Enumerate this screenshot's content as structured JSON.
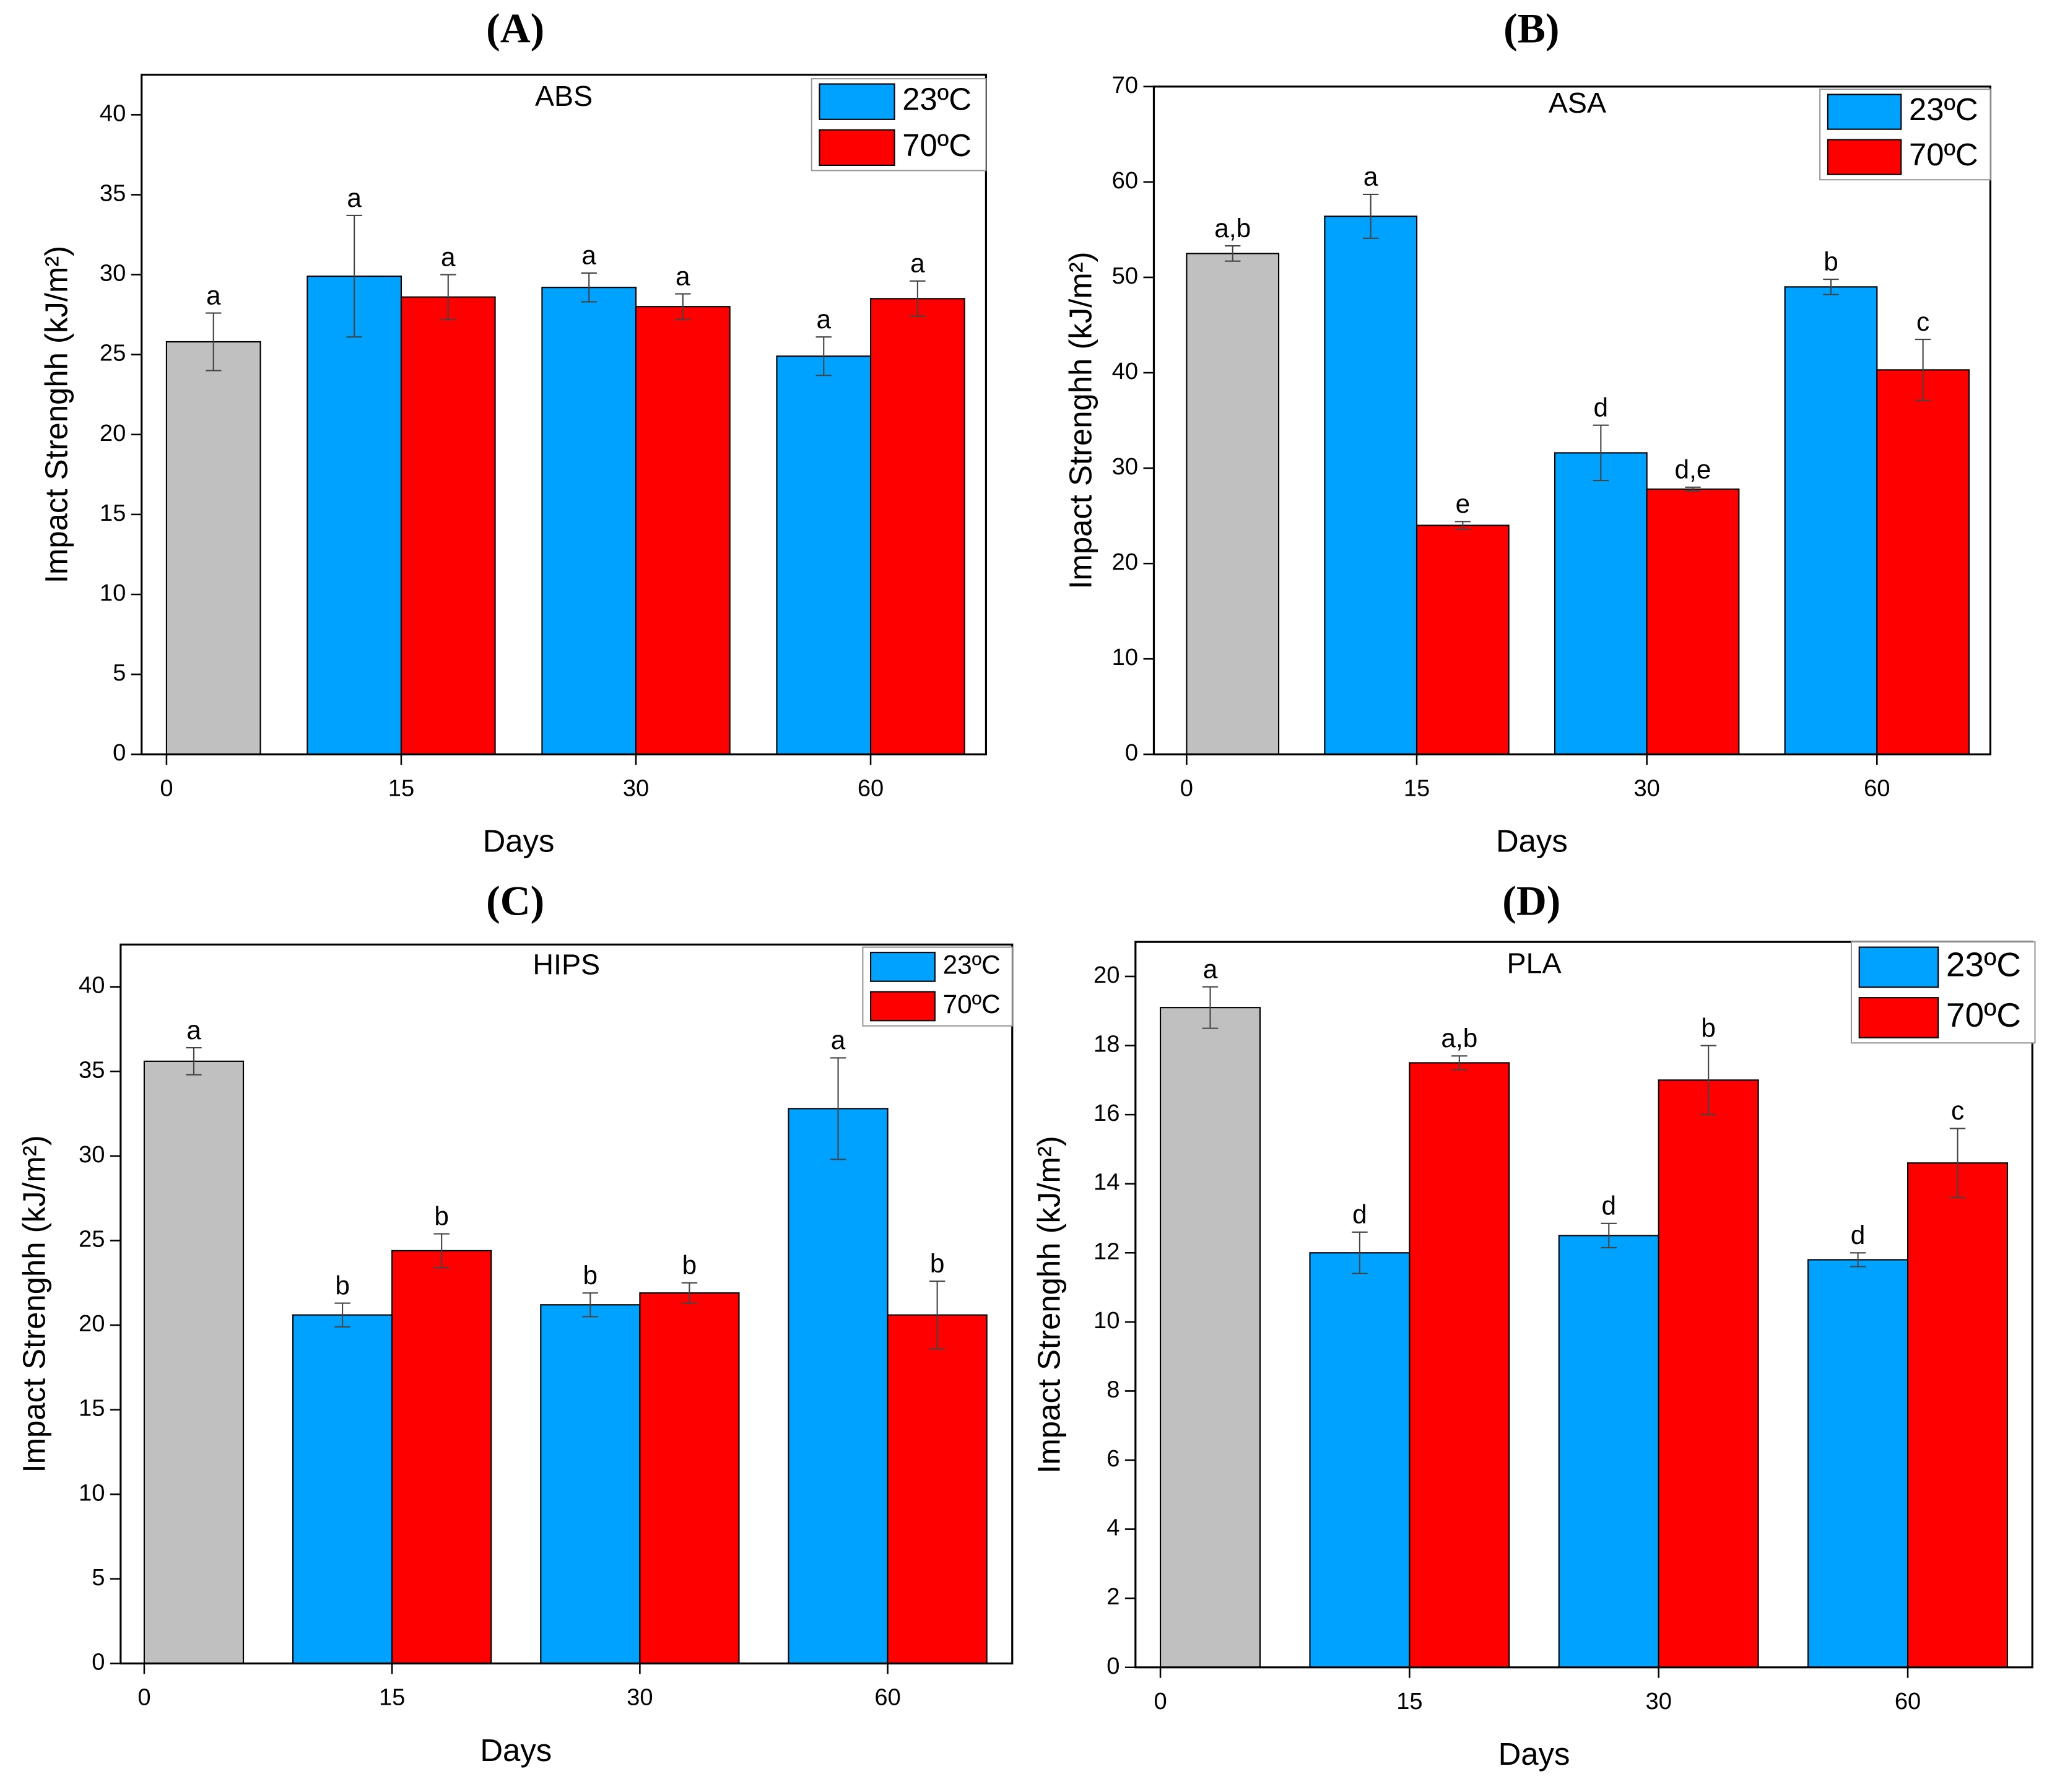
{
  "chart_data": [
    {
      "type": "bar",
      "title": "(A)",
      "subtitle": "ABS",
      "xlabel": "Days",
      "ylabel": "Impact Strenghh (kJ/m²)",
      "categories": [
        "0",
        "15",
        "30",
        "60"
      ],
      "ylim": [
        0,
        42.5
      ],
      "yticks": [
        0,
        5,
        10,
        15,
        20,
        25,
        30,
        35,
        40
      ],
      "series": [
        {
          "name": null,
          "color": "#c0c0c0",
          "values": [
            25.8,
            null,
            null,
            null
          ],
          "errors": [
            1.8,
            null,
            null,
            null
          ],
          "labels": [
            "a",
            null,
            null,
            null
          ]
        },
        {
          "name": "23ºC",
          "color": "#00a2ff",
          "values": [
            null,
            29.9,
            29.2,
            24.9
          ],
          "errors": [
            null,
            3.8,
            0.9,
            1.2
          ],
          "labels": [
            null,
            "a",
            "a",
            "a"
          ]
        },
        {
          "name": "70ºC",
          "color": "#ff0000",
          "values": [
            null,
            28.6,
            28.0,
            28.5
          ],
          "errors": [
            null,
            1.4,
            0.8,
            1.1
          ],
          "labels": [
            null,
            "a",
            "a",
            "a"
          ]
        }
      ]
    },
    {
      "type": "bar",
      "title": "(B)",
      "subtitle": "ASA",
      "xlabel": "Days",
      "ylabel": "Impact Strenghh (kJ/m²)",
      "categories": [
        "0",
        "15",
        "30",
        "60"
      ],
      "ylim": [
        0,
        70
      ],
      "yticks": [
        0,
        10,
        20,
        30,
        40,
        50,
        60,
        70
      ],
      "series": [
        {
          "name": null,
          "color": "#c0c0c0",
          "values": [
            52.5,
            null,
            null,
            null
          ],
          "errors": [
            0.8,
            null,
            null,
            null
          ],
          "labels": [
            "a,b",
            null,
            null,
            null
          ]
        },
        {
          "name": "23ºC",
          "color": "#00a2ff",
          "values": [
            null,
            56.4,
            31.6,
            49.0
          ],
          "errors": [
            null,
            2.3,
            2.9,
            0.8
          ],
          "labels": [
            null,
            "a",
            "d",
            "b"
          ]
        },
        {
          "name": "70ºC",
          "color": "#ff0000",
          "values": [
            null,
            24.0,
            27.8,
            40.3
          ],
          "errors": [
            null,
            0.4,
            0.2,
            3.2
          ],
          "labels": [
            null,
            "e",
            "d,e",
            "c"
          ]
        }
      ]
    },
    {
      "type": "bar",
      "title": "(C)",
      "subtitle": "HIPS",
      "xlabel": "Days",
      "ylabel": "Impact Strenghh (kJ/m²)",
      "categories": [
        "0",
        "15",
        "30",
        "60"
      ],
      "ylim": [
        0,
        42.5
      ],
      "yticks": [
        0,
        5,
        10,
        15,
        20,
        25,
        30,
        35,
        40
      ],
      "series": [
        {
          "name": null,
          "color": "#c0c0c0",
          "values": [
            35.6,
            null,
            null,
            null
          ],
          "errors": [
            0.8,
            null,
            null,
            null
          ],
          "labels": [
            "a",
            null,
            null,
            null
          ]
        },
        {
          "name": "23ºC",
          "color": "#00a2ff",
          "values": [
            null,
            20.6,
            21.2,
            32.8
          ],
          "errors": [
            null,
            0.7,
            0.7,
            3.0
          ],
          "labels": [
            null,
            "b",
            "b",
            "a"
          ]
        },
        {
          "name": "70ºC",
          "color": "#ff0000",
          "values": [
            null,
            24.4,
            21.9,
            20.6
          ],
          "errors": [
            null,
            1.0,
            0.6,
            2.0
          ],
          "labels": [
            null,
            "b",
            "b",
            "b"
          ]
        }
      ]
    },
    {
      "type": "bar",
      "title": "(D)",
      "subtitle": "PLA",
      "xlabel": "Days",
      "ylabel": "Impact Strenghh (kJ/m²)",
      "categories": [
        "0",
        "15",
        "30",
        "60"
      ],
      "ylim": [
        0,
        21
      ],
      "yticks": [
        0,
        2,
        4,
        6,
        8,
        10,
        12,
        14,
        16,
        18,
        20
      ],
      "series": [
        {
          "name": null,
          "color": "#c0c0c0",
          "values": [
            19.1,
            null,
            null,
            null
          ],
          "errors": [
            0.6,
            null,
            null,
            null
          ],
          "labels": [
            "a",
            null,
            null,
            null
          ]
        },
        {
          "name": "23ºC",
          "color": "#00a2ff",
          "values": [
            null,
            12.0,
            12.5,
            11.8
          ],
          "errors": [
            null,
            0.6,
            0.35,
            0.2
          ],
          "labels": [
            null,
            "d",
            "d",
            "d"
          ]
        },
        {
          "name": "70ºC",
          "color": "#ff0000",
          "values": [
            null,
            17.5,
            17.0,
            14.6
          ],
          "errors": [
            null,
            0.2,
            1.0,
            1.0
          ],
          "labels": [
            null,
            "a,b",
            "b",
            "c"
          ]
        }
      ]
    }
  ]
}
